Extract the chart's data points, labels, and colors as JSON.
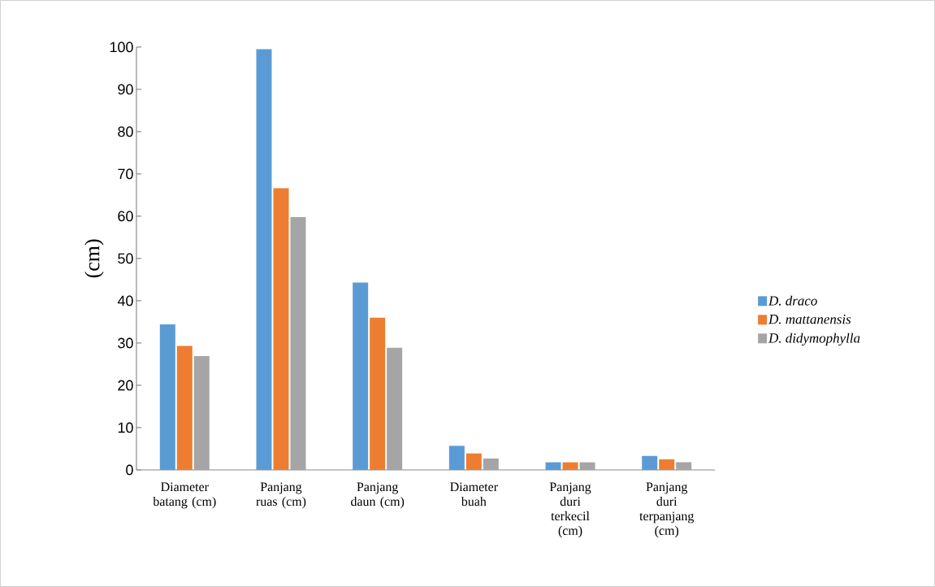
{
  "chart_data": {
    "type": "bar",
    "ylabel": "(cm)",
    "categories": [
      "Diameter batang (cm)",
      "Panjang ruas (cm)",
      "Panjang daun (cm)",
      "Diameter buah",
      "Panjang duri terkecil (cm)",
      "Panjang duri terpanjang (cm)"
    ],
    "series": [
      {
        "name": "D. draco",
        "color": "#5b9bd5",
        "values": [
          34.4,
          99.5,
          44.3,
          5.7,
          1.8,
          3.3
        ]
      },
      {
        "name": "D. mattanensis",
        "color": "#ed7d31",
        "values": [
          29.3,
          66.6,
          36,
          3.9,
          1.8,
          2.5
        ]
      },
      {
        "name": "D. didymophylla",
        "color": "#a5a5a5",
        "values": [
          26.9,
          59.8,
          28.9,
          2.7,
          1.8,
          1.8
        ]
      }
    ],
    "ylim": [
      0,
      100
    ],
    "yticks": [
      0,
      10,
      20,
      30,
      40,
      50,
      60,
      70,
      80,
      90,
      100
    ],
    "grid": false,
    "legend": "right"
  }
}
